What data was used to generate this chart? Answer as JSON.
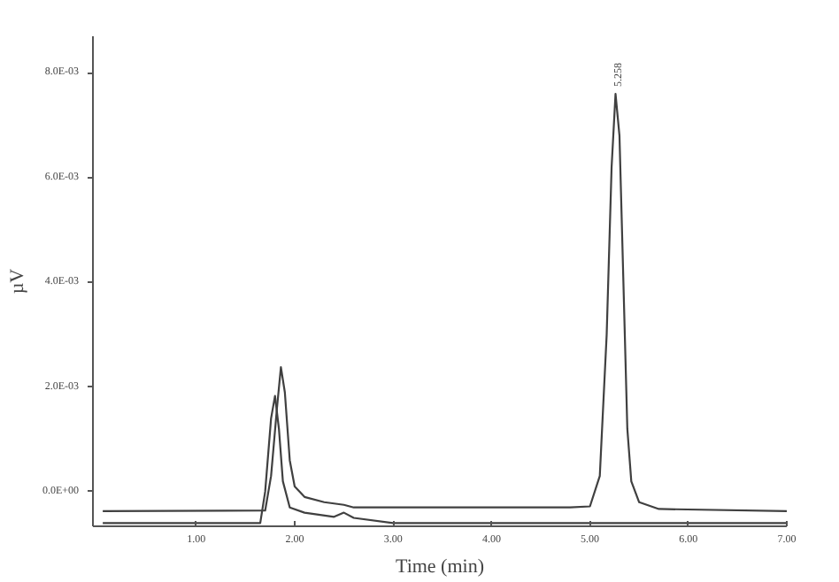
{
  "chart_data": {
    "type": "line",
    "xlabel": "Time (min)",
    "ylabel": "µV",
    "xlim": [
      -0.05,
      7.0
    ],
    "ylim": [
      -0.00066,
      0.0087
    ],
    "xticks": [
      {
        "value": 1,
        "label": "1.00"
      },
      {
        "value": 2,
        "label": "2.00"
      },
      {
        "value": 3,
        "label": "3.00"
      },
      {
        "value": 4,
        "label": "4.00"
      },
      {
        "value": 5,
        "label": "5.00"
      },
      {
        "value": 6,
        "label": "6.00"
      },
      {
        "value": 7,
        "label": "7.00"
      }
    ],
    "yticks": [
      {
        "value": 0,
        "label": "0.0E+00"
      },
      {
        "value": 0.002,
        "label": "2.0E-03"
      },
      {
        "value": 0.004,
        "label": "4.0E-03"
      },
      {
        "value": 0.006,
        "label": "6.0E-03"
      },
      {
        "value": 0.008,
        "label": "8.0E-03"
      }
    ],
    "grid": false,
    "line_style": "solid",
    "annotations": [
      {
        "text": "5.258",
        "x": 5.26,
        "y": 0.0076
      }
    ],
    "series": [
      {
        "color": "#404040",
        "x": [
          0.05,
          1.7,
          1.76,
          1.82,
          1.86,
          1.9,
          1.95,
          2.0,
          2.1,
          2.3,
          2.5,
          2.6,
          3.0,
          4.0,
          4.8,
          5.0,
          5.1,
          5.17,
          5.22,
          5.26,
          5.3,
          5.34,
          5.38,
          5.42,
          5.5,
          5.7,
          7.0
        ],
        "values": [
          -0.00037,
          -0.00036,
          0.0003,
          0.0016,
          0.00238,
          0.0019,
          0.0006,
          0.0001,
          -0.0001,
          -0.0002,
          -0.00025,
          -0.0003,
          -0.0003,
          -0.0003,
          -0.0003,
          -0.00028,
          0.0003,
          0.003,
          0.0062,
          0.0076,
          0.0068,
          0.004,
          0.0012,
          0.0002,
          -0.0002,
          -0.00033,
          -0.00037
        ]
      },
      {
        "color": "#404040",
        "x": [
          0.05,
          1.65,
          1.7,
          1.76,
          1.8,
          1.84,
          1.88,
          1.95,
          2.1,
          2.4,
          2.5,
          2.6,
          3.0,
          7.0
        ],
        "values": [
          -0.0006,
          -0.0006,
          0.0,
          0.0014,
          0.00183,
          0.0012,
          0.0002,
          -0.0003,
          -0.0004,
          -0.00048,
          -0.0004,
          -0.0005,
          -0.0006,
          -0.0006
        ]
      }
    ]
  }
}
